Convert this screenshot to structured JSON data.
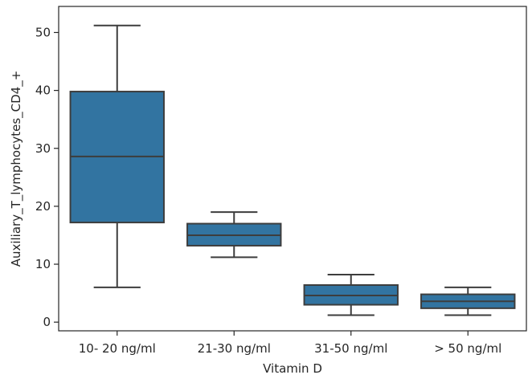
{
  "chart_data": {
    "type": "box",
    "xlabel": "Vitamin D",
    "ylabel": "Auxiliary_T_lymphocytes_CD4_+",
    "ylim": [
      -1.5,
      54.5
    ],
    "yticks": [
      0,
      10,
      20,
      30,
      40,
      50
    ],
    "grid": false,
    "legend": "none",
    "box_color": "#3274a1",
    "line_color": "#3d3d3d",
    "categories": [
      "10- 20 ng/ml",
      "21-30 ng/ml",
      "31-50 ng/ml",
      "> 50 ng/ml"
    ],
    "boxes": [
      {
        "whisker_low": 6,
        "q1": 17.2,
        "median": 28.6,
        "q3": 39.8,
        "whisker_high": 51.2
      },
      {
        "whisker_low": 11.2,
        "q1": 13.2,
        "median": 15.0,
        "q3": 17.0,
        "whisker_high": 19.0
      },
      {
        "whisker_low": 1.2,
        "q1": 3.0,
        "median": 4.6,
        "q3": 6.4,
        "whisker_high": 8.2
      },
      {
        "whisker_low": 1.2,
        "q1": 2.4,
        "median": 3.6,
        "q3": 4.8,
        "whisker_high": 6.0
      }
    ]
  }
}
